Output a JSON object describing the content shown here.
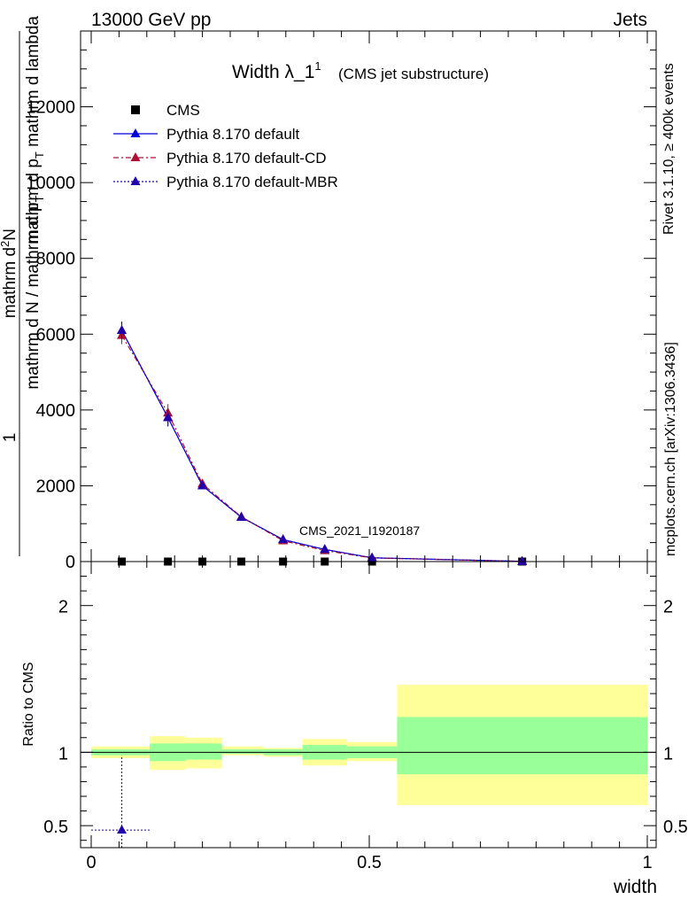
{
  "header": {
    "left": "13000 GeV pp",
    "right": "Jets"
  },
  "side_labels": {
    "rivet": "Rivet 3.1.10, ≥ 400k events",
    "mcplots": "mcplots.cern.ch [arXiv:1306.3436]"
  },
  "chart_data": [
    {
      "type": "line",
      "title": "Width λ_1",
      "title_sup": "1",
      "subtitle": "(CMS jet substructure)",
      "watermark": "CMS_2021_I1920187",
      "ylabel_numerator_top": "mathrm d",
      "ylabel_numerator_sup": "2",
      "ylabel_numerator_rest": "N",
      "ylabel_denominator": "mathrm d p",
      "ylabel_denominator_sub": "T",
      "ylabel_denominator_rest": " mathrm d lambda",
      "ylabel_prefix_num": "1",
      "ylabel_prefix_den": "mathrm d N / mathrm d p",
      "ylabel_prefix_den_sub": "T",
      "xlim": [
        0,
        1
      ],
      "ylim": [
        0,
        14000
      ],
      "y_ticks": [
        0,
        2000,
        4000,
        6000,
        8000,
        10000,
        12000
      ],
      "y_tick_labels": [
        "0",
        "2000",
        "4000",
        "6000",
        "8000",
        "10000",
        "12000"
      ],
      "legend_position": "top-left",
      "bin_edges": [
        0,
        0.105,
        0.17,
        0.235,
        0.31,
        0.38,
        0.46,
        0.55,
        1.0
      ],
      "x": [
        0.055,
        0.138,
        0.2,
        0.27,
        0.345,
        0.42,
        0.505,
        0.775
      ],
      "series": [
        {
          "name": "CMS",
          "style": "markers",
          "color": "#000000",
          "values": [
            0,
            0,
            0,
            0,
            0,
            0,
            0,
            0
          ]
        },
        {
          "name": "Pythia 8.170 default",
          "style": "solid",
          "color": "#0000dd",
          "values": [
            6100,
            3800,
            2000,
            1170,
            580,
            320,
            100,
            5
          ]
        },
        {
          "name": "Pythia 8.170 default-CD",
          "style": "dashdot",
          "color": "#aa1133",
          "values": [
            5970,
            3920,
            2050,
            1180,
            550,
            290,
            95,
            5
          ]
        },
        {
          "name": "Pythia 8.170 default-MBR",
          "style": "dotted",
          "color": "#2200aa",
          "values": [
            6100,
            3800,
            2000,
            1170,
            580,
            320,
            100,
            5
          ]
        }
      ]
    },
    {
      "type": "area",
      "ylabel": "Ratio to CMS",
      "xlabel": "width",
      "xlim": [
        0,
        1
      ],
      "ylim": [
        0.35,
        2.3
      ],
      "x_ticks": [
        0,
        0.5,
        1
      ],
      "x_tick_labels": [
        "0",
        "0.5",
        "1"
      ],
      "y_ticks": [
        0.5,
        1,
        2
      ],
      "y_tick_labels": [
        "0.5",
        "1",
        "2"
      ],
      "reference_line": 1,
      "bin_edges": [
        0,
        0.105,
        0.17,
        0.235,
        0.31,
        0.38,
        0.46,
        0.55,
        1.0
      ],
      "yellow_band": [
        [
          0.96,
          1.04
        ],
        [
          0.88,
          1.11
        ],
        [
          0.89,
          1.1
        ],
        [
          0.98,
          1.04
        ],
        [
          0.97,
          1.03
        ],
        [
          0.91,
          1.09
        ],
        [
          0.94,
          1.07
        ],
        [
          0.64,
          1.46
        ]
      ],
      "green_band": [
        [
          0.98,
          1.02
        ],
        [
          0.94,
          1.06
        ],
        [
          0.95,
          1.06
        ],
        [
          0.99,
          1.02
        ],
        [
          0.98,
          1.02
        ],
        [
          0.95,
          1.05
        ],
        [
          0.96,
          1.04
        ],
        [
          0.85,
          1.24
        ]
      ],
      "mbr_point": {
        "x": 0.055,
        "y": 0.47,
        "xerr": [
          0.0,
          0.105
        ],
        "yerr": [
          0.35,
          0.97
        ],
        "color": "#2200aa"
      }
    }
  ]
}
